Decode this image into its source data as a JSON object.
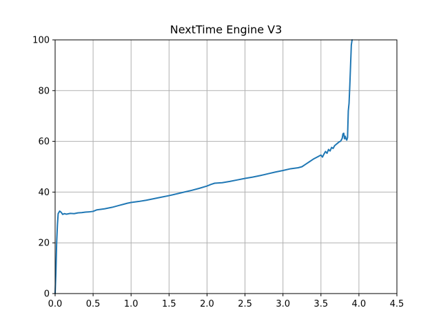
{
  "chart_data": {
    "type": "line",
    "title": "NextTime Engine V3",
    "xlabel": "",
    "ylabel": "",
    "xlim": [
      0,
      4.5
    ],
    "ylim": [
      0,
      100
    ],
    "xticks": [
      0.0,
      0.5,
      1.0,
      1.5,
      2.0,
      2.5,
      3.0,
      3.5,
      4.0,
      4.5
    ],
    "xtick_labels": [
      "0.0",
      "0.5",
      "1.0",
      "1.5",
      "2.0",
      "2.5",
      "3.0",
      "3.5",
      "4.0",
      "4.5"
    ],
    "yticks": [
      0,
      20,
      40,
      60,
      80,
      100
    ],
    "ytick_labels": [
      "0",
      "20",
      "40",
      "60",
      "80",
      "100"
    ],
    "grid": true,
    "series": [
      {
        "color": "#1f77b4",
        "x": [
          0.0,
          0.01,
          0.02,
          0.03,
          0.04,
          0.06,
          0.08,
          0.1,
          0.12,
          0.15,
          0.2,
          0.25,
          0.3,
          0.35,
          0.4,
          0.45,
          0.5,
          0.55,
          0.6,
          0.65,
          0.7,
          0.75,
          0.8,
          0.85,
          0.9,
          0.95,
          1.0,
          1.1,
          1.2,
          1.3,
          1.4,
          1.5,
          1.6,
          1.7,
          1.8,
          1.9,
          2.0,
          2.05,
          2.1,
          2.15,
          2.2,
          2.3,
          2.4,
          2.5,
          2.6,
          2.7,
          2.8,
          2.9,
          3.0,
          3.1,
          3.2,
          3.25,
          3.3,
          3.35,
          3.4,
          3.45,
          3.5,
          3.52,
          3.54,
          3.56,
          3.58,
          3.6,
          3.62,
          3.64,
          3.66,
          3.68,
          3.7,
          3.72,
          3.74,
          3.76,
          3.78,
          3.79,
          3.8,
          3.81,
          3.82,
          3.83,
          3.84,
          3.85,
          3.86,
          3.87,
          3.88,
          3.89,
          3.9,
          3.91
        ],
        "y": [
          0.0,
          8.0,
          20.0,
          27.0,
          31.5,
          32.5,
          32.0,
          31.2,
          31.5,
          31.3,
          31.6,
          31.5,
          31.8,
          31.9,
          32.1,
          32.2,
          32.4,
          33.0,
          33.2,
          33.4,
          33.7,
          34.0,
          34.4,
          34.8,
          35.2,
          35.6,
          35.9,
          36.3,
          36.8,
          37.4,
          38.0,
          38.6,
          39.3,
          40.0,
          40.7,
          41.5,
          42.4,
          43.0,
          43.5,
          43.6,
          43.7,
          44.2,
          44.8,
          45.4,
          45.9,
          46.5,
          47.2,
          47.9,
          48.5,
          49.2,
          49.6,
          50.0,
          51.0,
          52.0,
          53.0,
          53.8,
          54.6,
          53.8,
          55.0,
          56.0,
          55.3,
          56.8,
          56.2,
          57.6,
          57.2,
          58.3,
          58.8,
          59.3,
          59.8,
          60.1,
          61.2,
          63.0,
          63.2,
          61.0,
          62.0,
          61.0,
          60.5,
          61.5,
          72.0,
          75.0,
          82.0,
          90.0,
          98.0,
          100.0
        ]
      }
    ]
  }
}
